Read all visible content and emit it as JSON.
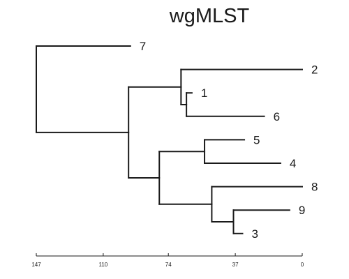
{
  "title": "wgMLST",
  "line_color": "#1a1a1a",
  "axis": {
    "ticks": [
      "147",
      "110",
      "74",
      "37",
      "0"
    ],
    "range": [
      147,
      0
    ]
  },
  "leaves": [
    {
      "id": "7",
      "label": "7",
      "height": 95
    },
    {
      "id": "2",
      "label": "2",
      "height": 0
    },
    {
      "id": "1",
      "label": "1",
      "height": 61
    },
    {
      "id": "6",
      "label": "6",
      "height": 21
    },
    {
      "id": "5",
      "label": "5",
      "height": 32
    },
    {
      "id": "4",
      "label": "4",
      "height": 12
    },
    {
      "id": "8",
      "label": "8",
      "height": 0
    },
    {
      "id": "9",
      "label": "9",
      "height": 7
    },
    {
      "id": "3",
      "label": "3",
      "height": 33
    }
  ],
  "tree": {
    "height": 147,
    "children": [
      {
        "leaf": "7"
      },
      {
        "height": 96,
        "children": [
          {
            "height": 67,
            "children": [
              {
                "leaf": "2"
              },
              {
                "height": 64,
                "children": [
                  {
                    "leaf": "1"
                  },
                  {
                    "leaf": "6"
                  }
                ]
              }
            ]
          },
          {
            "height": 79,
            "children": [
              {
                "height": 54,
                "children": [
                  {
                    "leaf": "5"
                  },
                  {
                    "leaf": "4"
                  }
                ]
              },
              {
                "height": 50,
                "children": [
                  {
                    "leaf": "8"
                  },
                  {
                    "height": 38,
                    "children": [
                      {
                        "leaf": "9"
                      },
                      {
                        "leaf": "3"
                      }
                    ]
                  }
                ]
              }
            ]
          }
        ]
      }
    ]
  }
}
